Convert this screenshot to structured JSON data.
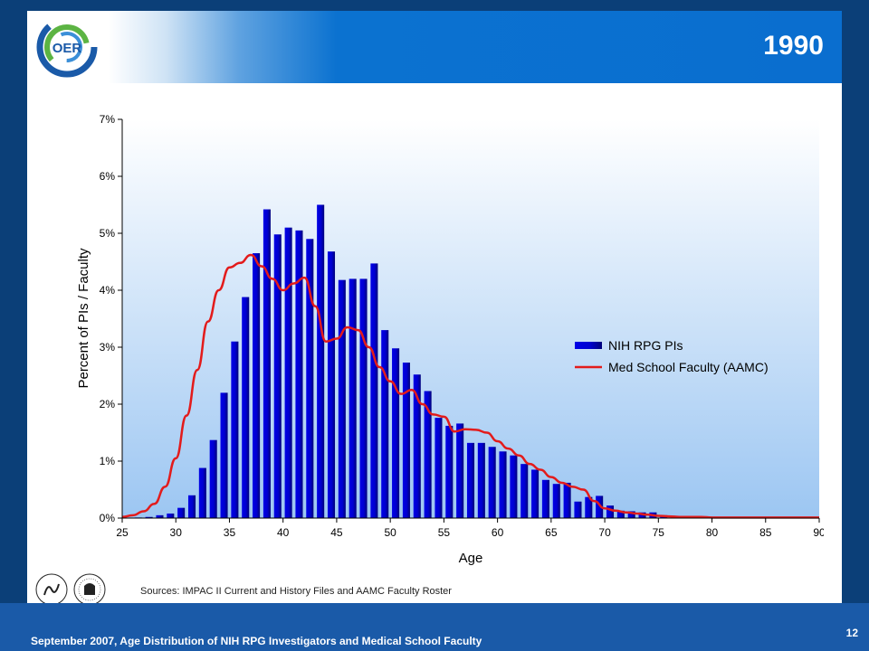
{
  "slide": {
    "title": "1990",
    "sources": "Sources:  IMPAC II Current  and History Files and AAMC Faculty Roster",
    "footer": "September 2007, Age Distribution of NIH RPG Investigators and Medical School Faculty",
    "page_number": "12",
    "logo_text": "OER"
  },
  "colors": {
    "bar": "#0000e6",
    "bar_dark": "#00007a",
    "line": "#e31b1b",
    "plot_bg_top": "#ffffff",
    "plot_bg_bottom": "#9cc6f2"
  },
  "chart_data": {
    "type": "bar",
    "title": "",
    "xlabel": "Age",
    "ylabel": "Percent of PIs / Faculty",
    "xlim": [
      25,
      90
    ],
    "ylim": [
      0,
      7
    ],
    "x_ticks": [
      "25",
      "30",
      "35",
      "40",
      "45",
      "50",
      "55",
      "60",
      "65",
      "70",
      "75",
      "80",
      "85",
      "90"
    ],
    "y_ticks": [
      "0%",
      "1%",
      "2%",
      "3%",
      "4%",
      "5%",
      "6%",
      "7%"
    ],
    "legend_position": "right",
    "grid": false,
    "series": [
      {
        "name": "NIH RPG PIs",
        "type": "bar",
        "x": [
          25,
          26,
          27,
          28,
          29,
          30,
          31,
          32,
          33,
          34,
          35,
          36,
          37,
          38,
          39,
          40,
          41,
          42,
          43,
          44,
          45,
          46,
          47,
          48,
          49,
          50,
          51,
          52,
          53,
          54,
          55,
          56,
          57,
          58,
          59,
          60,
          61,
          62,
          63,
          64,
          65,
          66,
          67,
          68,
          69,
          70,
          71,
          72,
          73,
          74,
          75,
          76,
          77,
          78,
          79,
          80,
          81,
          82,
          83,
          84,
          85,
          86,
          87,
          88,
          89
        ],
        "values": [
          0,
          0.01,
          0.02,
          0.05,
          0.08,
          0.18,
          0.4,
          0.88,
          1.37,
          2.2,
          3.1,
          3.88,
          4.65,
          5.42,
          4.98,
          5.1,
          5.05,
          4.9,
          5.5,
          4.68,
          4.18,
          4.2,
          4.2,
          4.47,
          3.3,
          2.98,
          2.73,
          2.52,
          2.23,
          1.76,
          1.62,
          1.66,
          1.32,
          1.32,
          1.25,
          1.17,
          1.1,
          0.95,
          0.85,
          0.67,
          0.6,
          0.62,
          0.29,
          0.37,
          0.39,
          0.22,
          0.13,
          0.12,
          0.1,
          0.1,
          0.05,
          0.04,
          0.03,
          0.02,
          0.02,
          0.02,
          0.01,
          0.01,
          0.01,
          0.01,
          0.01,
          0.01,
          0.01,
          0.01,
          0.01
        ]
      },
      {
        "name": "Med School Faculty (AAMC)",
        "type": "line",
        "x": [
          25,
          26,
          27,
          28,
          29,
          30,
          31,
          32,
          33,
          34,
          35,
          36,
          37,
          38,
          39,
          40,
          41,
          42,
          43,
          44,
          45,
          46,
          47,
          48,
          49,
          50,
          51,
          52,
          53,
          54,
          55,
          56,
          57,
          58,
          59,
          60,
          61,
          62,
          63,
          64,
          65,
          66,
          67,
          68,
          69,
          70,
          71,
          72,
          73,
          74,
          75,
          76,
          77,
          78,
          79,
          80,
          81,
          82,
          83,
          84,
          85,
          86,
          87,
          88,
          89,
          90
        ],
        "values": [
          0.02,
          0.05,
          0.12,
          0.25,
          0.55,
          1.05,
          1.8,
          2.6,
          3.45,
          4.0,
          4.4,
          4.48,
          4.62,
          4.42,
          4.2,
          4.0,
          4.12,
          4.22,
          3.72,
          3.1,
          3.15,
          3.35,
          3.3,
          3.0,
          2.65,
          2.4,
          2.18,
          2.25,
          2.0,
          1.82,
          1.78,
          1.52,
          1.56,
          1.55,
          1.5,
          1.35,
          1.22,
          1.1,
          0.95,
          0.85,
          0.72,
          0.62,
          0.55,
          0.5,
          0.3,
          0.17,
          0.13,
          0.1,
          0.08,
          0.06,
          0.04,
          0.03,
          0.02,
          0.02,
          0.02,
          0.01,
          0.01,
          0.01,
          0.01,
          0.01,
          0.01,
          0.01,
          0.01,
          0.01,
          0.01,
          0.01
        ]
      }
    ]
  }
}
